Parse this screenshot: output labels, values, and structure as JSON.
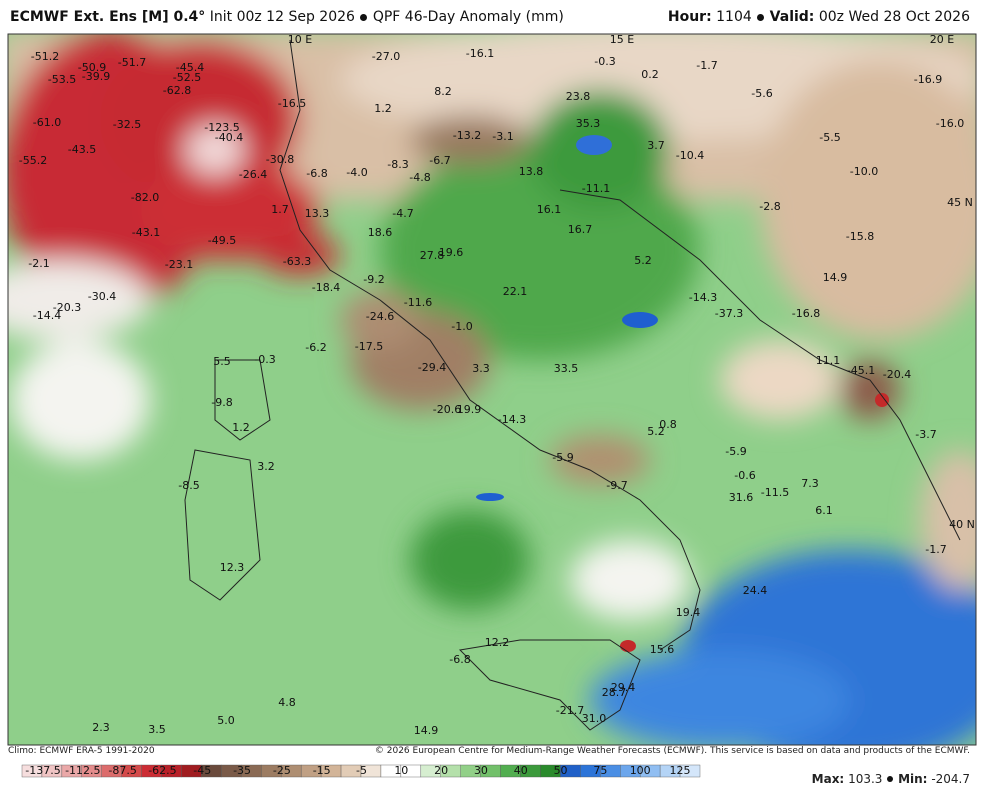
{
  "header": {
    "model": "ECMWF Ext.  Ens [M] 0.4°",
    "init": "Init 00z 12 Sep 2026",
    "product": "QPF 46-Day Anomaly (mm)",
    "hour_label": "Hour:",
    "hour": "1104",
    "valid_label": "Valid:",
    "valid": "00z Wed 28 Oct 2026"
  },
  "map": {
    "grid_labels": [
      "10 E",
      "15 E",
      "20 E",
      "45 N",
      "40 N"
    ],
    "labels": [
      "-51.2",
      "-50.9",
      "-51.7",
      "-45.4",
      "-53.5",
      "-39.9",
      "-52.5",
      "-62.8",
      "-61.0",
      "-32.5",
      "-123.5",
      "-40.4",
      "-43.5",
      "-55.2",
      "-30.8",
      "-26.4",
      "-82.0",
      "-43.1",
      "-49.5",
      "-63.3",
      "-23.1",
      "-2.1",
      "-30.4",
      "-20.3",
      "-14.4",
      "-18.4",
      "-27.0",
      "-16.1",
      "-0.3",
      "0.2",
      "-1.7",
      "-5.6",
      "-16.9",
      "-16.5",
      "1.2",
      "8.2",
      "23.8",
      "-13.2",
      "-3.1",
      "35.3",
      "3.7",
      "-10.4",
      "-5.5",
      "-16.0",
      "-6.8",
      "-4.0",
      "-8.3",
      "-6.7",
      "-4.8",
      "13.8",
      "-11.1",
      "-10.0",
      "1.7",
      "13.3",
      "-4.7",
      "16.1",
      "16.7",
      "-2.8",
      "-15.8",
      "18.6",
      "27.8",
      "19.6",
      "5.2",
      "14.9",
      "-9.2",
      "22.1",
      "-14.3",
      "-11.6",
      "-37.3",
      "-16.8",
      "-24.6",
      "-1.0",
      "-6.2",
      "-17.5",
      "5.5",
      "-0.3",
      "11.1",
      "-45.1",
      "-20.4",
      "-29.4",
      "3.3",
      "33.5",
      "-9.8",
      "-20.6",
      "19.9",
      "-14.3",
      "1.2",
      "5.2",
      "0.8",
      "-5.9",
      "-3.7",
      "-5.9",
      "3.2",
      "-0.6",
      "7.3",
      "-9.7",
      "-8.5",
      "31.6",
      "-11.5",
      "6.1",
      "-1.7",
      "12.3",
      "24.4",
      "19.4",
      "12.2",
      "15.6",
      "-6.8",
      "29.4",
      "28.7",
      "4.8",
      "-21.7",
      "31.0",
      "5.0",
      "2.3",
      "3.5",
      "14.9"
    ]
  },
  "footer": {
    "climo": "Climo: ECMWF ERA-5 1991-2020",
    "copyright": "© 2026 European Centre for Medium-Range Weather Forecasts (ECMWF). This service is based on data and products of the ECMWF.",
    "max_label": "Max:",
    "max": "103.3",
    "min_label": "Min:",
    "min": "-204.7"
  },
  "colorbar": {
    "ticks": [
      -137.5,
      -112.5,
      -87.5,
      -62.5,
      -45,
      -35,
      -25,
      -15,
      -5,
      10,
      20,
      30,
      40,
      50,
      75,
      100,
      125
    ]
  }
}
